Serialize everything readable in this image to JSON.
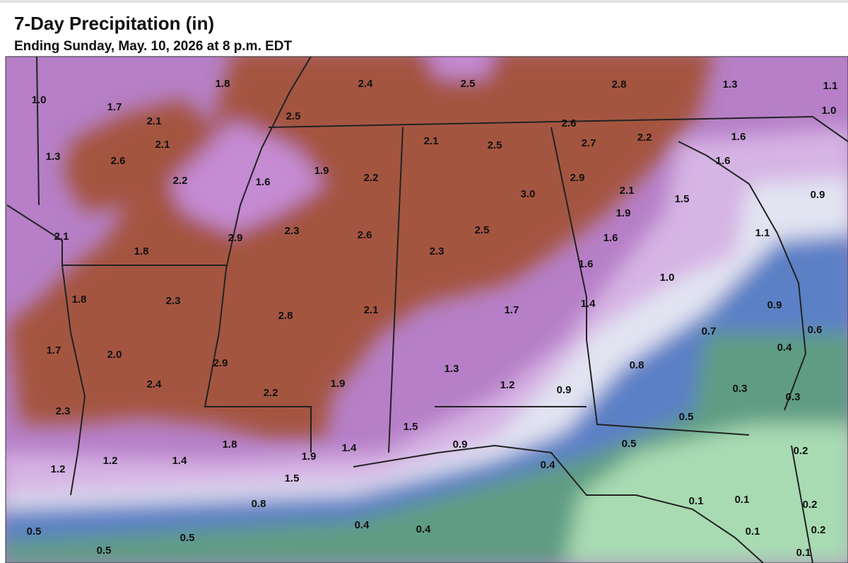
{
  "header": {
    "title": "7-Day Precipitation (in)",
    "subtitle": "Ending Sunday, May. 10, 2026 at 8 p.m. EDT"
  },
  "map": {
    "labels": [
      "1.0",
      "1.8",
      "2.4",
      "2.5",
      "2.8",
      "1.3",
      "1.1",
      "1.0",
      "1.7",
      "2.1",
      "2.5",
      "2.6",
      "2.1",
      "2.1",
      "2.5",
      "2.7",
      "2.2",
      "1.6",
      "1.3",
      "2.6",
      "1.6",
      "1.9",
      "2.2",
      "2.9",
      "2.2",
      "1.6",
      "3.0",
      "2.1",
      "0.9",
      "1.5",
      "1.9",
      "2.1",
      "2.9",
      "2.3",
      "2.6",
      "2.5",
      "1.1",
      "1.6",
      "1.8",
      "2.3",
      "1.6",
      "1.0",
      "1.8",
      "2.3",
      "2.1",
      "1.7",
      "1.4",
      "0.9",
      "2.8",
      "0.7",
      "0.6",
      "1.7",
      "2.0",
      "0.4",
      "2.9",
      "1.3",
      "0.8",
      "2.4",
      "1.9",
      "1.2",
      "0.9",
      "0.3",
      "2.2",
      "0.3",
      "2.3",
      "0.5",
      "1.5",
      "1.8",
      "0.9",
      "0.5",
      "1.4",
      "0.2",
      "1.9",
      "1.2",
      "1.4",
      "0.4",
      "1.2",
      "1.5",
      "0.8",
      "0.1",
      "0.1",
      "0.2",
      "0.4",
      "0.4",
      "0.5",
      "0.1",
      "0.2",
      "0.5",
      "0.5",
      "0.1"
    ]
  }
}
